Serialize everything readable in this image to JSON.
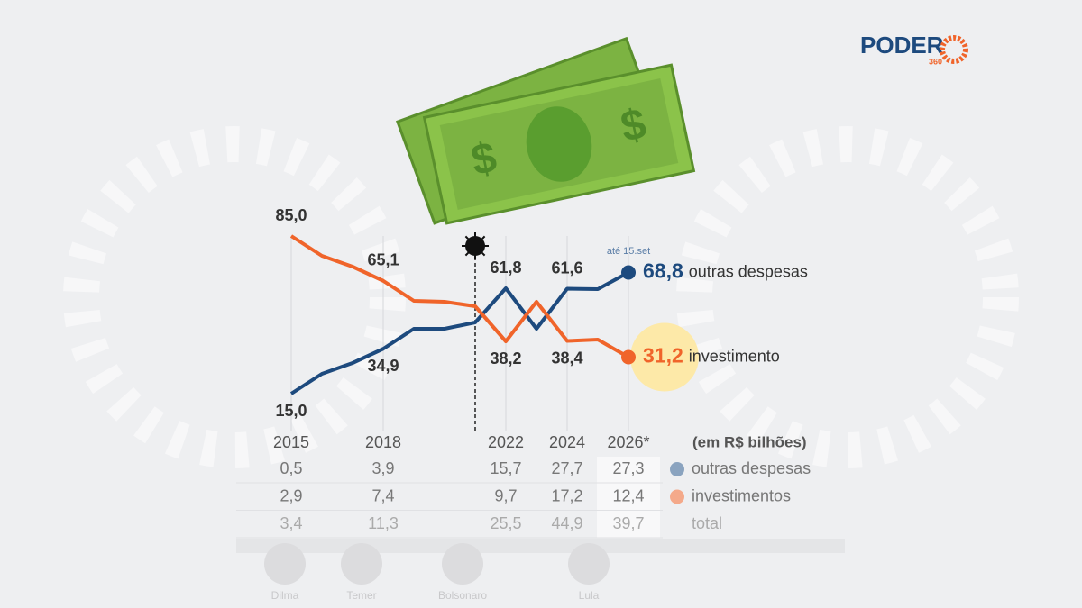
{
  "brand": {
    "name": "PODER",
    "sub": "360"
  },
  "chart_data": {
    "type": "line",
    "x": [
      2015,
      2016,
      2017,
      2018,
      2019,
      2020,
      2021,
      2022,
      2023,
      2024,
      2025,
      2026
    ],
    "xlim": [
      2015,
      2026
    ],
    "ylim": [
      0,
      85
    ],
    "xticks": [
      2015,
      2018,
      2022,
      2024,
      {
        "value": 2026,
        "label": "2026*"
      }
    ],
    "marker_x": 2021,
    "annotation": "até 15.set",
    "series": [
      {
        "name": "outras despesas",
        "color": "#1d4a7e",
        "values": [
          15.0,
          23.8,
          28.6,
          34.9,
          43.8,
          43.8,
          46.6,
          61.8,
          43.8,
          61.6,
          61.4,
          68.8
        ],
        "value_labels": [
          "15,0",
          null,
          null,
          "34,9",
          null,
          null,
          null,
          "61,8",
          null,
          "61,6",
          null,
          "68,8"
        ]
      },
      {
        "name": "investimento",
        "color": "#f0642a",
        "values": [
          85.0,
          76.2,
          71.4,
          65.1,
          56.2,
          55.8,
          53.8,
          38.2,
          55.8,
          38.4,
          39.0,
          31.2
        ],
        "value_labels": [
          "85,0",
          null,
          null,
          "65,1",
          null,
          null,
          null,
          "38,2",
          null,
          "38,4",
          null,
          "31,2"
        ]
      }
    ]
  },
  "table": {
    "unit": "(em R$ bilhões)",
    "rows": [
      {
        "label": "outras despesas",
        "color": "#8aa3bf",
        "cells": [
          "0,5",
          "3,9",
          "15,7",
          "27,7",
          "27,3"
        ]
      },
      {
        "label": "investimentos",
        "color": "#f4a98a",
        "cells": [
          "2,9",
          "7,4",
          "9,7",
          "17,2",
          "12,4"
        ]
      },
      {
        "label": "total",
        "cells": [
          "3,4",
          "11,3",
          "25,5",
          "44,9",
          "39,7"
        ]
      }
    ]
  },
  "presidents": [
    "Dilma",
    "Temer",
    "Bolsonaro",
    "Lula"
  ]
}
